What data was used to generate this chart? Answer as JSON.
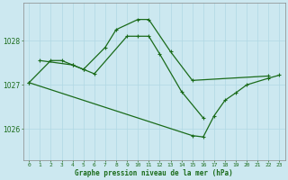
{
  "bg_color": "#cce8f0",
  "grid_color": "#aad4e0",
  "line_color": "#1a6b1a",
  "xlabel": "Graphe pression niveau de la mer (hPa)",
  "xlabel_color": "#1a6b1a",
  "yticks": [
    1026,
    1027,
    1028
  ],
  "xlim": [
    -0.5,
    23.5
  ],
  "ylim": [
    1025.3,
    1028.85
  ],
  "series1_x": [
    0,
    2,
    3,
    4,
    5,
    7,
    8,
    10,
    11,
    13,
    15,
    22
  ],
  "series1_y": [
    1027.05,
    1027.55,
    1027.55,
    1027.45,
    1027.35,
    1027.85,
    1028.25,
    1028.48,
    1028.48,
    1027.75,
    1027.1,
    1027.2
  ],
  "series2_x": [
    1,
    4,
    5,
    6,
    9,
    10,
    11,
    12,
    14,
    16
  ],
  "series2_y": [
    1027.55,
    1027.45,
    1027.35,
    1027.25,
    1028.1,
    1028.1,
    1028.1,
    1027.7,
    1026.85,
    1026.25
  ],
  "series3_x": [
    0,
    15,
    16,
    17,
    18,
    19,
    20,
    22,
    23
  ],
  "series3_y": [
    1027.05,
    1025.85,
    1025.82,
    1026.3,
    1026.65,
    1026.82,
    1027.0,
    1027.15,
    1027.22
  ]
}
